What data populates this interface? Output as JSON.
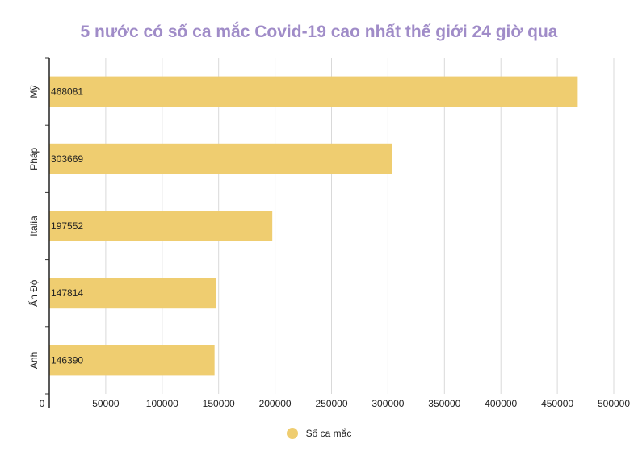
{
  "chart_data": {
    "type": "bar",
    "orientation": "horizontal",
    "title": "5 nước có số ca mắc Covid-19 cao nhất thế giới 24 giờ qua",
    "categories": [
      "Mỹ",
      "Pháp",
      "Italia",
      "Ấn Độ",
      "Anh"
    ],
    "series": [
      {
        "name": "Số ca mắc",
        "values": [
          468081,
          303669,
          197552,
          147814,
          146390
        ]
      }
    ],
    "xlim": [
      0,
      500000
    ],
    "xticks": [
      0,
      50000,
      100000,
      150000,
      200000,
      250000,
      300000,
      350000,
      400000,
      450000,
      500000
    ],
    "xlabel": "",
    "ylabel": "",
    "grid": true,
    "legend_position": "bottom",
    "bar_color": "#efcd70",
    "title_color": "#a08cc8"
  }
}
